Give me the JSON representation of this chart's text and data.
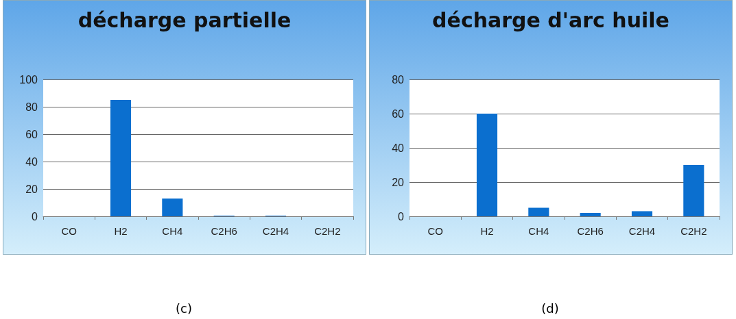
{
  "chart_data": [
    {
      "type": "bar",
      "title": "décharge partielle",
      "categories": [
        "CO",
        "H2",
        "CH4",
        "C2H6",
        "C2H4",
        "C2H2"
      ],
      "values": [
        0,
        85,
        13,
        0.5,
        0.5,
        0
      ],
      "color": "#0b6fcf",
      "ylim": [
        0,
        100
      ],
      "yticks": [
        0,
        20,
        40,
        60,
        80,
        100
      ],
      "grid": "y",
      "annotations": [
        "(c)"
      ]
    },
    {
      "type": "bar",
      "title": "décharge d'arc huile",
      "categories": [
        "CO",
        "H2",
        "CH4",
        "C2H6",
        "C2H4",
        "C2H2"
      ],
      "values": [
        0,
        60,
        5,
        2,
        3,
        30
      ],
      "color": "#0b6fcf",
      "ylim": [
        0,
        80
      ],
      "yticks": [
        0,
        20,
        40,
        60,
        80
      ],
      "grid": "y",
      "annotations": [
        "(d)"
      ]
    }
  ]
}
